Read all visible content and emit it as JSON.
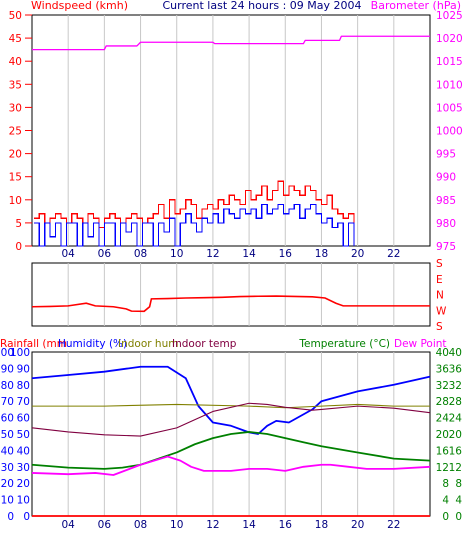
{
  "colors": {
    "wind_gust": "#ff0000",
    "wind_avg": "#0000ff",
    "barometer": "#ff00ff",
    "wind_direction": "#ff0000",
    "rainfall": "#ff0000",
    "humidity": "#0000ff",
    "indoor_hum": "#808000",
    "indoor_temp": "#800040",
    "temperature": "#008000",
    "dew_point": "#ff00ff",
    "title": "#000080",
    "grid": "#c8c8c8"
  },
  "chart_data": [
    {
      "type": "line",
      "title": "Current last 24 hours : 09 May 2004",
      "left_axis_label": "Windspeed (kmh)",
      "right_axis_label": "Barometer (hPa)",
      "x_ticks": [
        "04",
        "06",
        "08",
        "10",
        "12",
        "14",
        "16",
        "18",
        "20",
        "22"
      ],
      "x_range": [
        2,
        24
      ],
      "grid": true,
      "left_axis": {
        "range": [
          0,
          50
        ],
        "ticks": [
          0,
          5,
          10,
          15,
          20,
          25,
          30,
          35,
          40,
          45,
          50
        ]
      },
      "right_axis": {
        "range": [
          975,
          1025
        ],
        "ticks": [
          975,
          980,
          985,
          990,
          995,
          1000,
          1005,
          1010,
          1015,
          1020,
          1025
        ]
      },
      "series": [
        {
          "key": "gust",
          "axis": "left",
          "x": [
            2.1,
            2.4,
            2.7,
            3.0,
            3.3,
            3.6,
            3.9,
            4.2,
            4.5,
            4.8,
            5.1,
            5.4,
            5.7,
            6.0,
            6.3,
            6.6,
            6.9,
            7.2,
            7.5,
            7.8,
            8.1,
            8.4,
            8.7,
            9.0,
            9.3,
            9.6,
            9.9,
            10.2,
            10.5,
            10.8,
            11.1,
            11.4,
            11.7,
            12.0,
            12.3,
            12.6,
            12.9,
            13.2,
            13.5,
            13.8,
            14.1,
            14.4,
            14.7,
            15.0,
            15.3,
            15.6,
            15.9,
            16.2,
            16.5,
            16.8,
            17.1,
            17.4,
            17.7,
            18.0,
            18.3,
            18.6,
            18.9,
            19.2,
            19.5,
            19.8
          ],
          "y": [
            6,
            7,
            5,
            6,
            7,
            6,
            5,
            7,
            6,
            5,
            7,
            6,
            4,
            6,
            7,
            6,
            5,
            6,
            7,
            6,
            5,
            6,
            7,
            9,
            6,
            10,
            7,
            8,
            10,
            9,
            6,
            8,
            9,
            8,
            10,
            9,
            11,
            10,
            9,
            12,
            10,
            11,
            13,
            10,
            12,
            14,
            11,
            13,
            12,
            11,
            13,
            12,
            10,
            9,
            11,
            8,
            7,
            6,
            7,
            5
          ]
        },
        {
          "key": "avg",
          "axis": "left",
          "x": [
            2.1,
            2.4,
            2.7,
            3.0,
            3.3,
            3.6,
            3.9,
            4.2,
            4.5,
            4.8,
            5.1,
            5.4,
            5.7,
            6.0,
            6.3,
            6.6,
            6.9,
            7.2,
            7.5,
            7.8,
            8.1,
            8.4,
            8.7,
            9.0,
            9.3,
            9.6,
            9.9,
            10.2,
            10.5,
            10.8,
            11.1,
            11.4,
            11.7,
            12.0,
            12.3,
            12.6,
            12.9,
            13.2,
            13.5,
            13.8,
            14.1,
            14.4,
            14.7,
            15.0,
            15.3,
            15.6,
            15.9,
            16.2,
            16.5,
            16.8,
            17.1,
            17.4,
            17.7,
            18.0,
            18.3,
            18.6,
            18.9,
            19.2,
            19.5,
            19.8
          ],
          "y": [
            5,
            0,
            5,
            2,
            5,
            0,
            5,
            5,
            0,
            5,
            2,
            5,
            0,
            5,
            5,
            0,
            5,
            3,
            5,
            0,
            5,
            5,
            0,
            5,
            3,
            6,
            0,
            5,
            7,
            5,
            3,
            6,
            5,
            7,
            5,
            8,
            7,
            6,
            8,
            7,
            8,
            6,
            9,
            7,
            8,
            9,
            7,
            8,
            9,
            6,
            8,
            9,
            7,
            5,
            6,
            4,
            5,
            0,
            5,
            0
          ]
        },
        {
          "key": "barometer",
          "axis": "right",
          "x": [
            2,
            6,
            6.1,
            7.8,
            8.0,
            12.0,
            12.1,
            17.0,
            17.1,
            19.0,
            19.1,
            24
          ],
          "y": [
            1017.5,
            1017.5,
            1018.3,
            1018.3,
            1019.1,
            1019.1,
            1018.8,
            1018.8,
            1019.5,
            1019.5,
            1020.4,
            1020.4
          ]
        }
      ]
    },
    {
      "type": "line",
      "title": "",
      "right_axis_label": "",
      "x_range": [
        2,
        24
      ],
      "grid": true,
      "right_axis": {
        "range": [
          0,
          360
        ],
        "ticks": [
          "S",
          "E",
          "N",
          "W",
          "S"
        ]
      },
      "series": [
        {
          "key": "direction",
          "x": [
            2,
            3,
            4,
            5,
            5.5,
            6.5,
            7.2,
            7.5,
            8.2,
            8.5,
            8.6,
            9.5,
            10.5,
            11.5,
            12.5,
            13.5,
            14.5,
            15.5,
            16.5,
            17.5,
            18.2,
            18.8,
            19.2,
            20.5,
            24
          ],
          "y": [
            250,
            248,
            245,
            230,
            245,
            250,
            262,
            275,
            276,
            250,
            205,
            203,
            200,
            198,
            196,
            192,
            190,
            189,
            191,
            193,
            200,
            230,
            245,
            245,
            245
          ]
        }
      ]
    },
    {
      "type": "line",
      "title": "",
      "left_axis_label": "Rainfall (mm",
      "left_labels": [
        "Humidity (%)",
        "Indoor hum",
        "Indoor temp"
      ],
      "right_labels": [
        "Temperature (°C)",
        "Dew Point"
      ],
      "x_ticks": [
        "04",
        "06",
        "08",
        "10",
        "12",
        "14",
        "16",
        "18",
        "20",
        "22"
      ],
      "x_range": [
        2,
        24
      ],
      "grid": true,
      "left_axis": {
        "range": [
          0,
          100
        ],
        "ticks": [
          0,
          10,
          20,
          30,
          40,
          50,
          60,
          70,
          80,
          90,
          100
        ]
      },
      "right_axis": {
        "range": [
          0,
          40
        ],
        "ticks": [
          0,
          4,
          8,
          12,
          16,
          20,
          24,
          28,
          32,
          36,
          40
        ]
      },
      "series": [
        {
          "key": "humidity",
          "axis": "left",
          "x": [
            2,
            4,
            6,
            8,
            9.5,
            10.5,
            11.2,
            12,
            13,
            14,
            14.5,
            15,
            15.5,
            16.2,
            17.5,
            18,
            20,
            22,
            24
          ],
          "y": [
            84,
            86,
            88,
            91,
            91,
            84,
            67,
            57,
            55,
            51,
            50,
            55,
            58,
            57,
            65,
            70,
            76,
            80,
            85
          ]
        },
        {
          "key": "rainfall",
          "axis": "left",
          "x": [
            2,
            24
          ],
          "y": [
            0,
            0
          ]
        },
        {
          "key": "indoor_hum",
          "axis": "left",
          "x": [
            2,
            6,
            10,
            14,
            16,
            18,
            20,
            22,
            24
          ],
          "y": [
            67,
            67,
            68,
            67,
            66,
            67,
            68,
            67,
            67
          ]
        },
        {
          "key": "indoor_temp",
          "axis": "right",
          "x": [
            2,
            4,
            6,
            8,
            10,
            12,
            14,
            15,
            16,
            17.5,
            18,
            20,
            22,
            24
          ],
          "y": [
            21.5,
            20.5,
            19.8,
            19.5,
            21.5,
            25.5,
            27.5,
            27.2,
            26.5,
            25.8,
            26.0,
            26.8,
            26.3,
            25.2
          ]
        },
        {
          "key": "temperature",
          "axis": "right",
          "x": [
            2,
            4,
            6,
            7,
            8,
            10,
            11,
            12,
            13,
            14,
            15,
            16,
            17,
            18,
            20,
            22,
            24
          ],
          "y": [
            12.5,
            11.8,
            11.5,
            11.8,
            12.5,
            15.5,
            17.5,
            19.0,
            20.0,
            20.5,
            20.0,
            19.0,
            18.0,
            17.0,
            15.5,
            14.0,
            13.5
          ]
        },
        {
          "key": "dew_point",
          "axis": "right",
          "x": [
            2,
            4,
            5.5,
            6.5,
            8,
            9.5,
            10.2,
            10.8,
            11.5,
            12,
            13,
            14,
            15,
            16,
            17,
            18,
            18.5,
            19.5,
            20.5,
            22,
            24
          ],
          "y": [
            10.5,
            10.2,
            10.5,
            10.0,
            12.5,
            14.5,
            13.5,
            12.0,
            11.0,
            11.0,
            11.0,
            11.5,
            11.5,
            11.0,
            12.0,
            12.5,
            12.5,
            12.0,
            11.5,
            11.5,
            12.0
          ]
        }
      ]
    }
  ]
}
